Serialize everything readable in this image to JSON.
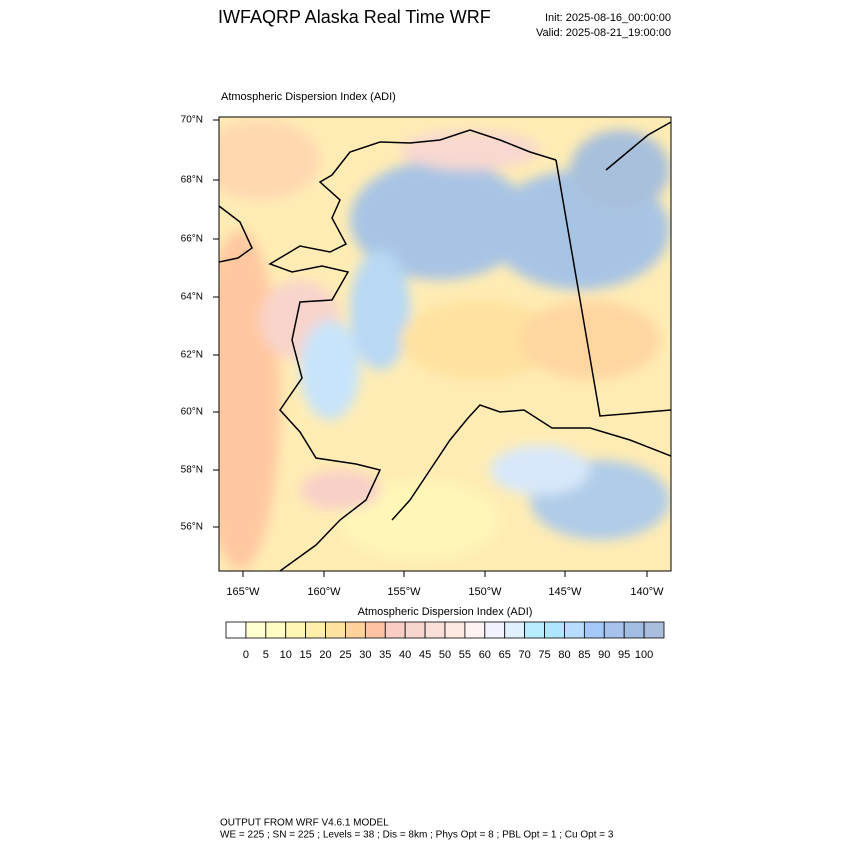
{
  "header": {
    "title": "IWFAQRP Alaska Real Time WRF",
    "init": "Init: 2025-08-16_00:00:00",
    "valid": "Valid: 2025-08-21_19:00:00"
  },
  "map": {
    "title": "Atmospheric Dispersion Index   (ADI)",
    "lat_labels": [
      "70°N",
      "68°N",
      "66°N",
      "64°N",
      "62°N",
      "60°N",
      "58°N",
      "56°N"
    ],
    "lon_labels": [
      "165°W",
      "160°W",
      "155°W",
      "150°W",
      "145°W",
      "140°W"
    ]
  },
  "colorbar": {
    "title": "Atmospheric Dispersion Index  (ADI)",
    "colors": [
      "#ffffff",
      "#ffffd2",
      "#fffcc4",
      "#fff6b4",
      "#ffeea8",
      "#ffe2a0",
      "#ffd29a",
      "#ffc2a2",
      "#f9ccc4",
      "#f8d6d0",
      "#fadfd8",
      "#fde8e2",
      "#fff2f2",
      "#f0f2ff",
      "#e0f0ff",
      "#b8ecff",
      "#aee6ff",
      "#b8dcff",
      "#a4c8f8",
      "#a8c2ee",
      "#a2bce2",
      "#a8bedc"
    ],
    "labels": [
      "0",
      "5",
      "10",
      "15",
      "20",
      "25",
      "30",
      "35",
      "40",
      "45",
      "50",
      "55",
      "60",
      "65",
      "70",
      "75",
      "80",
      "85",
      "90",
      "95",
      "100"
    ]
  },
  "footer": {
    "line1": "OUTPUT FROM WRF V4.6.1 MODEL",
    "line2": "WE = 225 ; SN = 225 ; Levels = 38 ; Dis = 8km ; Phys Opt = 8 ; PBL Opt = 1 ; Cu Opt = 3"
  }
}
